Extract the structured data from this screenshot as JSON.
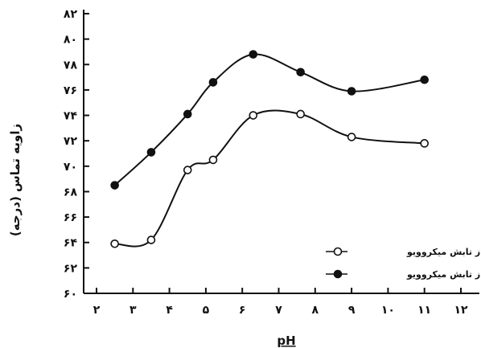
{
  "chart_data": {
    "type": "line",
    "title": "",
    "xlabel": "pH",
    "ylabel": "زاویه تماس (درجه)",
    "xlim": [
      2,
      12
    ],
    "ylim": [
      60,
      82
    ],
    "x_ticks": [
      2,
      3,
      4,
      5,
      6,
      7,
      8,
      9,
      10,
      11,
      12
    ],
    "x_tick_labels": [
      "۲",
      "۳",
      "۴",
      "۵",
      "۶",
      "۷",
      "۸",
      "۹",
      "۱۰",
      "۱۱",
      "۱۲"
    ],
    "y_ticks": [
      60,
      62,
      64,
      66,
      68,
      70,
      72,
      74,
      76,
      78,
      80,
      82
    ],
    "y_tick_labels": [
      "۶۰",
      "۶۲",
      "۶۴",
      "۶۶",
      "۶۸",
      "۷۰",
      "۷۲",
      "۷۴",
      "۷۶",
      "۷۸",
      "۸۰",
      "۸۲"
    ],
    "grid": false,
    "legend_position": "bottom-right",
    "series": [
      {
        "name": "قبل از تابش میکروویو",
        "marker": "open-circle",
        "color": "#111111",
        "x": [
          2.5,
          3.5,
          4.5,
          5.2,
          6.3,
          7.6,
          9.0,
          11.0
        ],
        "y": [
          63.9,
          64.2,
          69.7,
          70.5,
          74.0,
          74.1,
          72.3,
          71.8
        ]
      },
      {
        "name": "بعد از تابش میکروویو",
        "marker": "filled-circle",
        "color": "#111111",
        "x": [
          2.5,
          3.5,
          4.5,
          5.2,
          6.3,
          7.6,
          9.0,
          11.0
        ],
        "y": [
          68.5,
          71.1,
          74.1,
          76.6,
          78.8,
          77.4,
          75.9,
          76.8
        ]
      }
    ]
  }
}
